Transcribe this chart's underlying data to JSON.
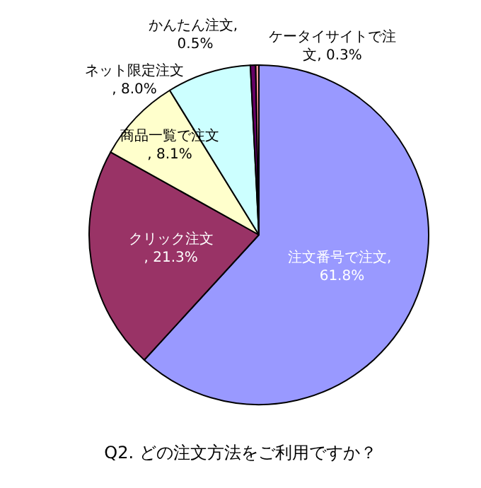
{
  "chart_data": {
    "type": "pie",
    "title": "Q2. どの注文方法をご利用ですか？",
    "categories": [
      "注文番号で注文, 61.8%",
      "クリック注文, 21.3%",
      "商品一覧で注文, 8.1%",
      "ネット限定注文, 8.0%",
      "かんたん注文, 0.5%",
      "ケータイサイトで注文, 0.3%"
    ],
    "values": [
      61.8,
      21.3,
      8.1,
      8.0,
      0.5,
      0.3
    ],
    "colors": [
      "#9999ff",
      "#993366",
      "#ffffcc",
      "#ccffff",
      "#660066",
      "#ff9999"
    ],
    "legend": false
  }
}
